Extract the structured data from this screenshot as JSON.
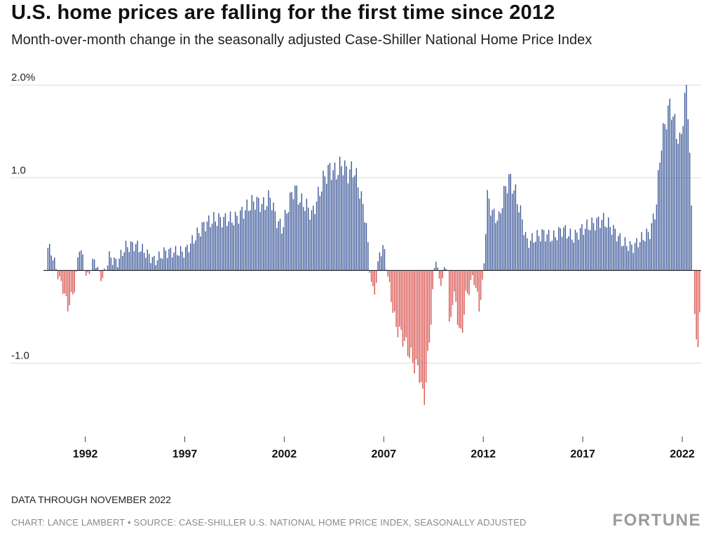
{
  "header": {
    "title": "U.S. home prices are falling for the first time since 2012",
    "subtitle": "Month-over-month change in the seasonally adjusted Case-Shiller National Home Price Index"
  },
  "footer": {
    "note": "DATA THROUGH NOVEMBER 2022",
    "source": "CHART: LANCE LAMBERT • SOURCE: CASE-SHILLER U.S. NATIONAL HOME PRICE INDEX, SEASONALLY ADJUSTED",
    "brand": "FORTUNE"
  },
  "chart_data": {
    "type": "bar",
    "title": "U.S. home prices are falling for the first time since 2012",
    "subtitle": "Month-over-month change in the seasonally adjusted Case-Shiller National Home Price Index",
    "ylim": [
      -1.7,
      2.1
    ],
    "xlim": [
      1989.9,
      2022.95
    ],
    "grid": true,
    "y_ticks": [
      {
        "value": 2.0,
        "label": "2.0%"
      },
      {
        "value": 1.0,
        "label": "1.0"
      },
      {
        "value": -1.0,
        "label": "-1.0"
      }
    ],
    "x_ticks": [
      {
        "value": 1992,
        "label": "1992"
      },
      {
        "value": 1997,
        "label": "1997"
      },
      {
        "value": 2002,
        "label": "2002"
      },
      {
        "value": 2007,
        "label": "2007"
      },
      {
        "value": 2012,
        "label": "2012"
      },
      {
        "value": 2017,
        "label": "2017"
      },
      {
        "value": 2022,
        "label": "2022"
      }
    ],
    "positive_color": "#3e5a9a",
    "negative_color": "#d9534f",
    "start": "1990-02",
    "end": "2022-11",
    "anchors": [
      [
        1990.1,
        0.25
      ],
      [
        1990.3,
        0.2
      ],
      [
        1990.5,
        0.05
      ],
      [
        1990.7,
        -0.1
      ],
      [
        1990.9,
        -0.2
      ],
      [
        1991.1,
        -0.4
      ],
      [
        1991.3,
        -0.3
      ],
      [
        1991.5,
        -0.15
      ],
      [
        1991.7,
        0.28
      ],
      [
        1991.9,
        0.1
      ],
      [
        1992.1,
        -0.1
      ],
      [
        1992.3,
        0.05
      ],
      [
        1992.5,
        0.12
      ],
      [
        1992.7,
        -0.05
      ],
      [
        1992.9,
        -0.08
      ],
      [
        1993.2,
        0.15
      ],
      [
        1993.6,
        0.08
      ],
      [
        1994.0,
        0.25
      ],
      [
        1994.5,
        0.28
      ],
      [
        1995.0,
        0.2
      ],
      [
        1995.5,
        0.1
      ],
      [
        1996.0,
        0.2
      ],
      [
        1996.5,
        0.2
      ],
      [
        1997.0,
        0.2
      ],
      [
        1997.5,
        0.35
      ],
      [
        1998.0,
        0.5
      ],
      [
        1998.5,
        0.55
      ],
      [
        1999.0,
        0.55
      ],
      [
        1999.5,
        0.55
      ],
      [
        2000.0,
        0.65
      ],
      [
        2000.5,
        0.75
      ],
      [
        2001.0,
        0.7
      ],
      [
        2001.3,
        0.8
      ],
      [
        2001.6,
        0.55
      ],
      [
        2001.9,
        0.45
      ],
      [
        2002.2,
        0.7
      ],
      [
        2002.5,
        0.9
      ],
      [
        2002.8,
        0.75
      ],
      [
        2003.1,
        0.7
      ],
      [
        2003.4,
        0.6
      ],
      [
        2003.7,
        0.8
      ],
      [
        2004.0,
        1.0
      ],
      [
        2004.3,
        1.1
      ],
      [
        2004.6,
        1.05
      ],
      [
        2004.9,
        1.15
      ],
      [
        2005.2,
        1.05
      ],
      [
        2005.5,
        1.1
      ],
      [
        2005.8,
        0.85
      ],
      [
        2006.1,
        0.55
      ],
      [
        2006.3,
        0.0
      ],
      [
        2006.5,
        -0.3
      ],
      [
        2006.8,
        0.2
      ],
      [
        2007.0,
        0.25
      ],
      [
        2007.3,
        -0.2
      ],
      [
        2007.6,
        -0.6
      ],
      [
        2007.9,
        -0.7
      ],
      [
        2008.2,
        -0.85
      ],
      [
        2008.5,
        -1.0
      ],
      [
        2008.8,
        -1.1
      ],
      [
        2009.0,
        -1.45
      ],
      [
        2009.2,
        -1.0
      ],
      [
        2009.4,
        -0.45
      ],
      [
        2009.6,
        0.2
      ],
      [
        2009.8,
        -0.15
      ],
      [
        2010.0,
        -0.05
      ],
      [
        2010.2,
        0.1
      ],
      [
        2010.3,
        -0.7
      ],
      [
        2010.5,
        -0.2
      ],
      [
        2010.7,
        -0.5
      ],
      [
        2010.9,
        -0.75
      ],
      [
        2011.1,
        -0.3
      ],
      [
        2011.3,
        -0.2
      ],
      [
        2011.5,
        -0.05
      ],
      [
        2011.8,
        -0.4
      ],
      [
        2012.0,
        -0.1
      ],
      [
        2012.2,
        0.8
      ],
      [
        2012.5,
        0.6
      ],
      [
        2012.8,
        0.55
      ],
      [
        2013.0,
        0.8
      ],
      [
        2013.3,
        1.0
      ],
      [
        2013.6,
        0.85
      ],
      [
        2013.9,
        0.6
      ],
      [
        2014.2,
        0.3
      ],
      [
        2014.6,
        0.35
      ],
      [
        2015.0,
        0.4
      ],
      [
        2015.5,
        0.35
      ],
      [
        2016.0,
        0.45
      ],
      [
        2016.5,
        0.35
      ],
      [
        2017.0,
        0.45
      ],
      [
        2017.5,
        0.5
      ],
      [
        2018.0,
        0.55
      ],
      [
        2018.5,
        0.45
      ],
      [
        2019.0,
        0.3
      ],
      [
        2019.5,
        0.25
      ],
      [
        2020.0,
        0.35
      ],
      [
        2020.4,
        0.42
      ],
      [
        2020.7,
        0.7
      ],
      [
        2020.9,
        1.3
      ],
      [
        2021.1,
        1.55
      ],
      [
        2021.4,
        1.8
      ],
      [
        2021.7,
        1.5
      ],
      [
        2021.9,
        1.35
      ],
      [
        2022.1,
        1.8
      ],
      [
        2022.25,
        2.0
      ],
      [
        2022.4,
        1.1
      ],
      [
        2022.5,
        0.28
      ],
      [
        2022.6,
        -0.3
      ],
      [
        2022.7,
        -0.85
      ],
      [
        2022.8,
        -0.8
      ],
      [
        2022.9,
        -0.25
      ]
    ]
  }
}
